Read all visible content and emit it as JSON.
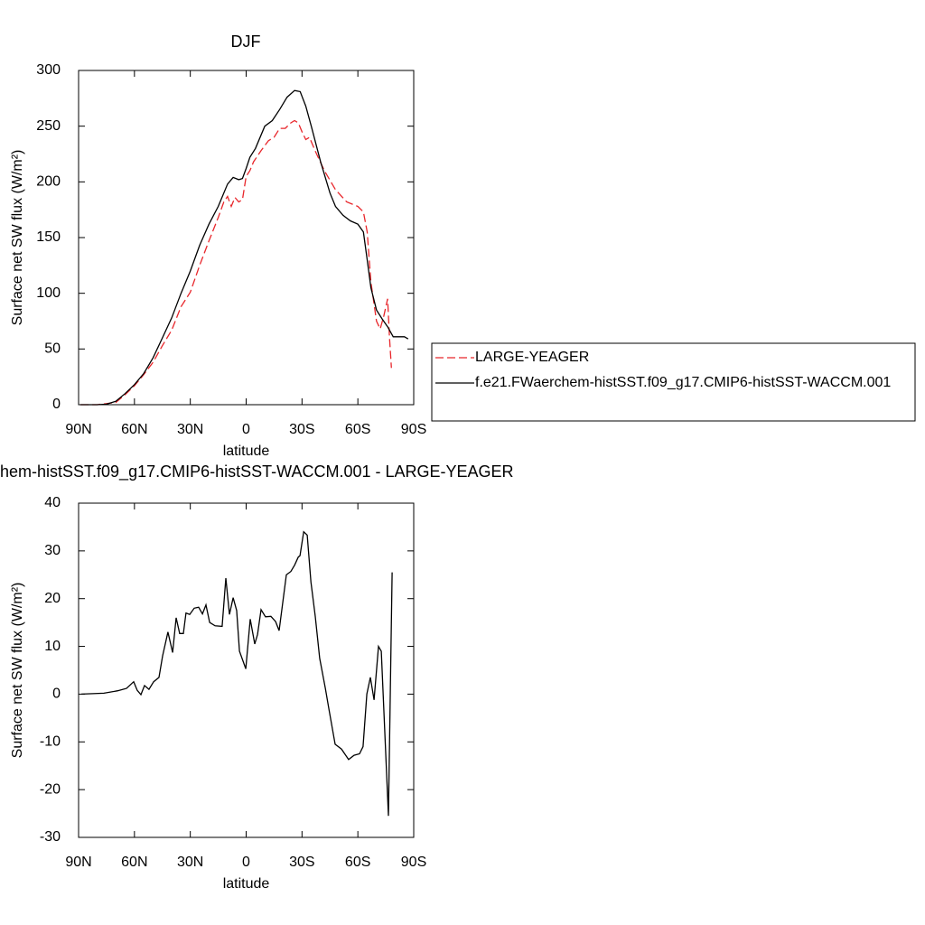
{
  "chart_data": [
    {
      "type": "line",
      "title": "DJF",
      "xlabel": "latitude",
      "ylabel": "Surface net SW flux (W/m²)",
      "xlim": [
        90,
        -90
      ],
      "xticks": [
        {
          "value": 90,
          "label": "90N"
        },
        {
          "value": 60,
          "label": "60N"
        },
        {
          "value": 30,
          "label": "30N"
        },
        0,
        {
          "value": -30,
          "label": "30S"
        },
        {
          "value": -60,
          "label": "60S"
        },
        {
          "value": -90,
          "label": "90S"
        }
      ],
      "ylim": [
        0,
        300
      ],
      "yticks": [
        0,
        50,
        100,
        150,
        200,
        250,
        300
      ],
      "legend": "right",
      "series": [
        {
          "name": "LARGE-YEAGER",
          "color": "#e8262b",
          "dash": "dashed",
          "x": [
            89,
            80,
            70,
            65,
            60,
            55,
            50,
            45,
            40,
            35,
            30,
            25,
            20,
            15,
            12,
            10,
            8,
            6,
            4,
            2,
            0,
            -2,
            -4,
            -8,
            -12,
            -15,
            -18,
            -21,
            -24,
            -26,
            -28,
            -30,
            -32,
            -34,
            -37,
            -42,
            -48,
            -54,
            -60,
            -63,
            -65,
            -67,
            -70,
            -72,
            -74,
            -76,
            -77,
            -78
          ],
          "values": [
            0,
            0,
            2,
            9,
            17,
            27,
            38,
            53,
            67,
            88,
            101,
            125,
            147,
            168,
            182,
            187,
            178,
            186,
            182,
            184,
            205,
            210,
            218,
            228,
            237,
            240,
            248,
            248,
            253,
            255,
            253,
            245,
            238,
            240,
            228,
            210,
            193,
            182,
            178,
            173,
            155,
            110,
            75,
            68,
            80,
            95,
            60,
            33
          ]
        },
        {
          "name": "f.e21.FWaerchem-histSST.f09_g17.CMIP6-histSST-WACCM.001",
          "color": "#000000",
          "dash": "solid",
          "x": [
            89,
            80,
            75,
            70,
            65,
            60,
            55,
            50,
            45,
            40,
            35,
            30,
            25,
            20,
            15,
            10,
            7,
            4,
            2,
            0,
            -2,
            -5,
            -10,
            -14,
            -18,
            -22,
            -26,
            -29,
            -32,
            -35,
            -40,
            -45,
            -48,
            -52,
            -56,
            -60,
            -63,
            -65,
            -67,
            -70,
            -73,
            -76,
            -79,
            -82,
            -85,
            -87
          ],
          "values": [
            0,
            0,
            0.5,
            3,
            10,
            18,
            28,
            42,
            60,
            78,
            100,
            120,
            143,
            162,
            178,
            198,
            204,
            202,
            203,
            212,
            222,
            230,
            250,
            255,
            265,
            276,
            282,
            281,
            268,
            250,
            218,
            190,
            178,
            170,
            165,
            162,
            155,
            130,
            105,
            85,
            77,
            70,
            61,
            61,
            61,
            59
          ]
        }
      ]
    },
    {
      "type": "line",
      "title": "hem-histSST.f09_g17.CMIP6-histSST-WACCM.001 - LARGE-YEAGER",
      "xlabel": "latitude",
      "ylabel": "Surface net SW flux (W/m²)",
      "xlim": [
        90,
        -90
      ],
      "xticks": [
        {
          "value": 90,
          "label": "90N"
        },
        {
          "value": 60,
          "label": "60N"
        },
        {
          "value": 30,
          "label": "30N"
        },
        0,
        {
          "value": -30,
          "label": "30S"
        },
        {
          "value": -60,
          "label": "60S"
        },
        {
          "value": -90,
          "label": "90S"
        }
      ],
      "ylim": [
        -30,
        40
      ],
      "yticks": [
        -30,
        -20,
        -10,
        0,
        10,
        20,
        30,
        40
      ],
      "series": [
        {
          "color": "#000000",
          "dash": "solid",
          "x": [
            88.5,
            76.4,
            69,
            64.3,
            60.4,
            58.5,
            56.5,
            54.6,
            52.2,
            49.7,
            46.8,
            44.9,
            42,
            39.5,
            37.6,
            35.7,
            33.7,
            32.3,
            30.3,
            27.9,
            25.5,
            23.5,
            21.6,
            19.6,
            16.7,
            12.9,
            10.9,
            9,
            7,
            5.1,
            3.6,
            0.2,
            -2.2,
            -4.6,
            -6.1,
            -8,
            -10.4,
            -13.3,
            -15.8,
            -17.7,
            -21.6,
            -24,
            -26,
            -28,
            -28.9,
            -30.9,
            -32.8,
            -34.8,
            -37.1,
            -39.5,
            -42.5,
            -44.4,
            -47.8,
            -51.2,
            -55,
            -58,
            -60.9,
            -62.8,
            -64.8,
            -66.7,
            -68.7,
            -71.1,
            -72.6,
            -76.4,
            -78.4
          ],
          "values": [
            0,
            0.2,
            0.7,
            1.2,
            2.6,
            0.8,
            -0.1,
            1.8,
            1,
            2.6,
            3.5,
            8,
            13,
            8.7,
            16,
            12.7,
            12.7,
            17,
            16.7,
            18,
            18.2,
            16.8,
            18.7,
            15,
            14.3,
            14.2,
            24.3,
            16.7,
            20.2,
            17.5,
            9,
            5.3,
            15.7,
            10.5,
            12.5,
            17.7,
            16.2,
            16.3,
            15.2,
            13.3,
            25,
            25.7,
            27,
            28.7,
            29,
            34,
            33.3,
            23.5,
            16.3,
            7.5,
            1.3,
            -3,
            -10.5,
            -11.5,
            -13.7,
            -12.8,
            -12.5,
            -11,
            0,
            3.5,
            -1.2,
            10,
            9,
            -25.5,
            25.5
          ]
        }
      ]
    }
  ]
}
